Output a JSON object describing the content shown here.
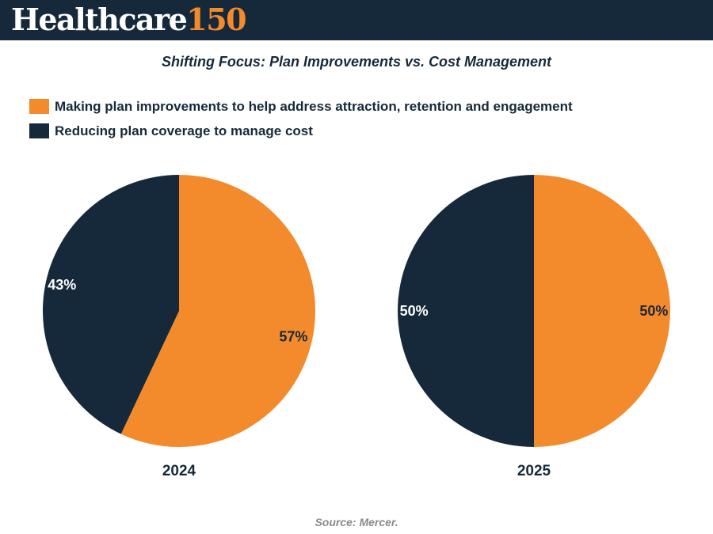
{
  "brand": {
    "word": "Healthcare",
    "number": "150"
  },
  "colors": {
    "orange": "#f38a2b",
    "navy": "#16293a"
  },
  "chart_data": {
    "type": "pie",
    "title": "Shifting Focus: Plan Improvements vs. Cost Management",
    "legend": [
      {
        "label": "Making plan improvements to help address attraction, retention and engagement",
        "color": "#f38a2b"
      },
      {
        "label": "Reducing plan coverage to manage cost",
        "color": "#16293a"
      }
    ],
    "charts": [
      {
        "category": "2024",
        "slices": [
          {
            "series": "Making plan improvements to help address attraction, retention and engagement",
            "value": 57,
            "label": "57%",
            "color": "#f38a2b",
            "label_color": "#16293a"
          },
          {
            "series": "Reducing plan coverage to manage cost",
            "value": 43,
            "label": "43%",
            "color": "#16293a",
            "label_color": "#ffffff"
          }
        ]
      },
      {
        "category": "2025",
        "slices": [
          {
            "series": "Making plan improvements to help address attraction, retention and engagement",
            "value": 50,
            "label": "50%",
            "color": "#f38a2b",
            "label_color": "#16293a"
          },
          {
            "series": "Reducing plan coverage to manage cost",
            "value": 50,
            "label": "50%",
            "color": "#16293a",
            "label_color": "#ffffff"
          }
        ]
      }
    ]
  },
  "source": "Source: Mercer."
}
